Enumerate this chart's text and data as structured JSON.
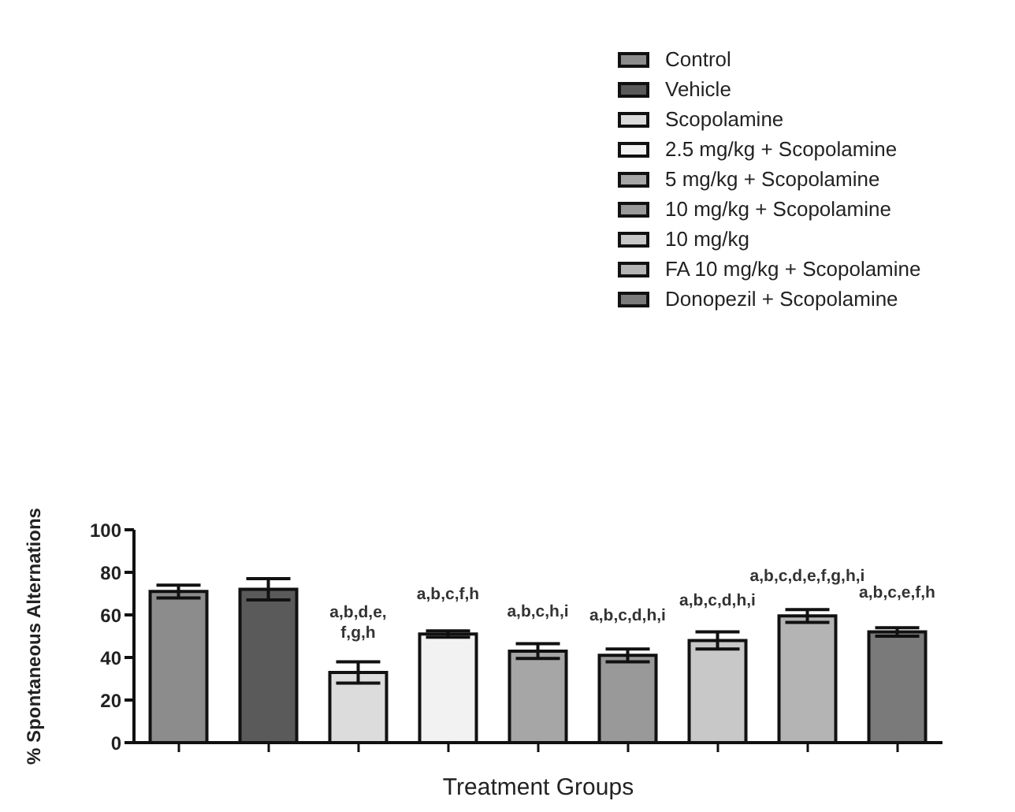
{
  "chart_data": {
    "type": "bar",
    "xlabel": "Treatment Groups",
    "ylabel": "% Spontaneous Alternations",
    "categories": [
      null,
      null,
      null,
      null,
      null,
      null,
      null,
      null,
      null
    ],
    "series": [
      {
        "name": "Control",
        "color": "#8c8c8c",
        "values": [
          71,
          null,
          null,
          null,
          null,
          null,
          null,
          null,
          null
        ],
        "errors": [
          3,
          null,
          null,
          null,
          null,
          null,
          null,
          null,
          null
        ]
      },
      {
        "name": "Vehicle",
        "color": "#5a5a5a",
        "values": [
          null,
          72,
          null,
          null,
          null,
          null,
          null,
          null,
          null
        ],
        "errors": [
          null,
          5,
          null,
          null,
          null,
          null,
          null,
          null,
          null
        ]
      },
      {
        "name": "Scopolamine",
        "color": "#dcdcdc",
        "values": [
          null,
          null,
          33,
          null,
          null,
          null,
          null,
          null,
          null
        ],
        "errors": [
          null,
          null,
          5,
          null,
          null,
          null,
          null,
          null,
          null
        ],
        "value_labels": [
          null,
          null,
          "a,b,d,e, f,g,h",
          null,
          null,
          null,
          null,
          null,
          null
        ]
      },
      {
        "name": "2.5 mg/kg + Scopolamine",
        "color": "#f2f2f2",
        "values": [
          null,
          null,
          null,
          51,
          null,
          null,
          null,
          null,
          null
        ],
        "errors": [
          null,
          null,
          null,
          1.5,
          null,
          null,
          null,
          null,
          null
        ],
        "value_labels": [
          null,
          null,
          null,
          "a,b,c,f,h",
          null,
          null,
          null,
          null,
          null
        ]
      },
      {
        "name": "5 mg/kg + Scopolamine",
        "color": "#a6a6a6",
        "values": [
          null,
          null,
          null,
          null,
          43,
          null,
          null,
          null,
          null
        ],
        "errors": [
          null,
          null,
          null,
          null,
          3.5,
          null,
          null,
          null,
          null
        ],
        "value_labels": [
          null,
          null,
          null,
          null,
          "a,b,c,h,i",
          null,
          null,
          null,
          null
        ]
      },
      {
        "name": "10 mg/kg + Scopolamine",
        "color": "#999999",
        "values": [
          null,
          null,
          null,
          null,
          null,
          41,
          null,
          null,
          null
        ],
        "errors": [
          null,
          null,
          null,
          null,
          null,
          3,
          null,
          null,
          null
        ],
        "value_labels": [
          null,
          null,
          null,
          null,
          null,
          "a,b,c,d,h,i",
          null,
          null,
          null
        ]
      },
      {
        "name": "10 mg/kg",
        "color": "#c8c8c8",
        "values": [
          null,
          null,
          null,
          null,
          null,
          null,
          48,
          null,
          null
        ],
        "errors": [
          null,
          null,
          null,
          null,
          null,
          null,
          4,
          null,
          null
        ],
        "value_labels": [
          null,
          null,
          null,
          null,
          null,
          null,
          "a,b,c,d,h,i",
          null,
          null
        ]
      },
      {
        "name": "FA 10 mg/kg + Scopolamine",
        "color": "#b4b4b4",
        "values": [
          null,
          null,
          null,
          null,
          null,
          null,
          null,
          59.5,
          null
        ],
        "errors": [
          null,
          null,
          null,
          null,
          null,
          null,
          null,
          3,
          null
        ],
        "value_labels": [
          null,
          null,
          null,
          null,
          null,
          null,
          null,
          "a,b,c,d,e,f,g,h,i",
          null
        ]
      },
      {
        "name": "Donopezil + Scopolamine",
        "color": "#7a7a7a",
        "values": [
          null,
          null,
          null,
          null,
          null,
          null,
          null,
          null,
          52
        ],
        "errors": [
          null,
          null,
          null,
          null,
          null,
          null,
          null,
          null,
          2
        ],
        "value_labels": [
          null,
          null,
          null,
          null,
          null,
          null,
          null,
          null,
          "a,b,c,e,f,h"
        ]
      }
    ],
    "ylim": [
      0,
      100
    ],
    "yticks": [
      0,
      20,
      40,
      60,
      80,
      100
    ],
    "legend": "top right",
    "tick_labels": "y"
  }
}
